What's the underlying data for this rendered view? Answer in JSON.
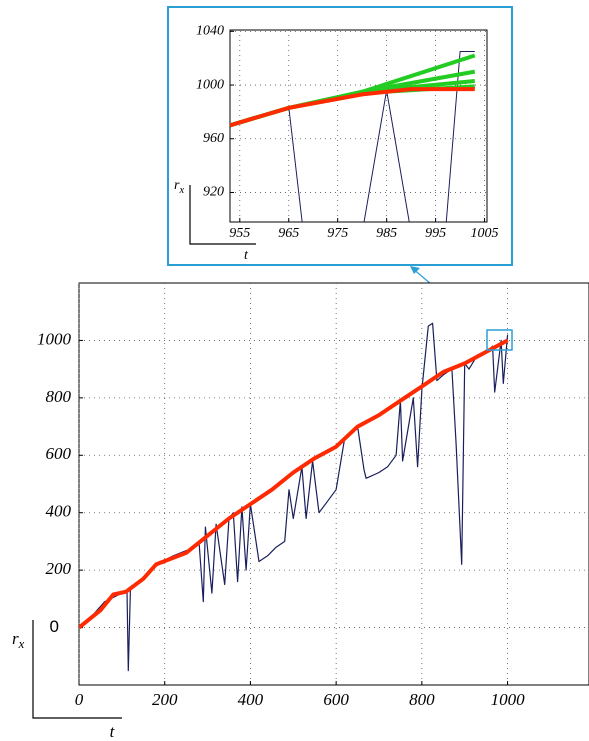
{
  "chart_data": [
    {
      "type": "line",
      "x_label": "t",
      "y_label": "r",
      "y_label_sub": "x",
      "xlim": [
        0,
        1190
      ],
      "ylim": [
        -200,
        1200
      ],
      "xticks": [
        0,
        200,
        400,
        600,
        800,
        1000
      ],
      "yticks": [
        0,
        200,
        400,
        600,
        800,
        1000
      ],
      "grid": true,
      "series": [
        {
          "color": "#1a1f5c",
          "width": 1.2,
          "x": [
            0,
            30,
            60,
            100,
            112,
            115,
            120,
            150,
            180,
            220,
            270,
            280,
            290,
            295,
            310,
            320,
            340,
            350,
            360,
            370,
            380,
            390,
            400,
            420,
            440,
            460,
            480,
            490,
            500,
            520,
            530,
            545,
            560,
            580,
            600,
            620,
            650,
            665,
            670,
            700,
            720,
            740,
            750,
            755,
            780,
            790,
            800,
            815,
            825,
            835,
            850,
            870,
            880,
            893,
            900,
            910,
            930,
            950,
            965,
            970,
            985,
            990,
            1000
          ],
          "values": [
            0,
            40,
            90,
            120,
            130,
            -150,
            130,
            170,
            220,
            250,
            280,
            300,
            90,
            350,
            120,
            360,
            150,
            380,
            400,
            160,
            420,
            200,
            430,
            230,
            250,
            280,
            300,
            480,
            380,
            560,
            380,
            580,
            400,
            440,
            480,
            660,
            700,
            550,
            520,
            540,
            560,
            600,
            790,
            580,
            800,
            560,
            830,
            1050,
            1060,
            860,
            880,
            900,
            640,
            220,
            920,
            900,
            950,
            960,
            980,
            820,
            1000,
            850,
            1020
          ]
        },
        {
          "color": "#ff2a00",
          "width": 4,
          "x": [
            0,
            50,
            80,
            110,
            150,
            180,
            250,
            300,
            350,
            400,
            450,
            500,
            550,
            600,
            650,
            700,
            750,
            800,
            850,
            900,
            950,
            1000
          ],
          "values": [
            0,
            60,
            115,
            125,
            170,
            220,
            260,
            320,
            380,
            430,
            480,
            540,
            590,
            630,
            700,
            740,
            790,
            840,
            890,
            920,
            960,
            1000
          ]
        }
      ]
    },
    {
      "type": "line",
      "x_label": "t",
      "y_label": "r",
      "y_label_sub": "x",
      "xlim": [
        953,
        1005.5
      ],
      "ylim": [
        898,
        1041
      ],
      "xticks": [
        955,
        965,
        975,
        985,
        995,
        1005
      ],
      "yticks": [
        920,
        960,
        1000,
        1040
      ],
      "grid": true,
      "series": [
        {
          "color": "#1a1f5c",
          "width": 1,
          "x": [
            953,
            965,
            968,
            980,
            985,
            990,
            997,
            1000,
            1003
          ],
          "values": [
            970,
            984,
            890,
            890,
            996,
            890,
            890,
            1025,
            1025
          ]
        },
        {
          "color": "#22cc22",
          "width": 4,
          "x": [
            953,
            965,
            980,
            1003
          ],
          "values": [
            970,
            983,
            995,
            1022
          ]
        },
        {
          "color": "#22cc22",
          "width": 4,
          "x": [
            953,
            965,
            980,
            1003
          ],
          "values": [
            970,
            983,
            995,
            1010
          ]
        },
        {
          "color": "#22cc22",
          "width": 4,
          "x": [
            953,
            965,
            980,
            1003
          ],
          "values": [
            970,
            983,
            995,
            1003
          ]
        },
        {
          "color": "#22cc22",
          "width": 4,
          "x": [
            953,
            965,
            980,
            1003
          ],
          "values": [
            970,
            983,
            994,
            999
          ]
        },
        {
          "color": "#ff2a00",
          "width": 4,
          "x": [
            953,
            965,
            980,
            990,
            1003
          ],
          "values": [
            970,
            983,
            993,
            997,
            997
          ]
        }
      ]
    }
  ]
}
